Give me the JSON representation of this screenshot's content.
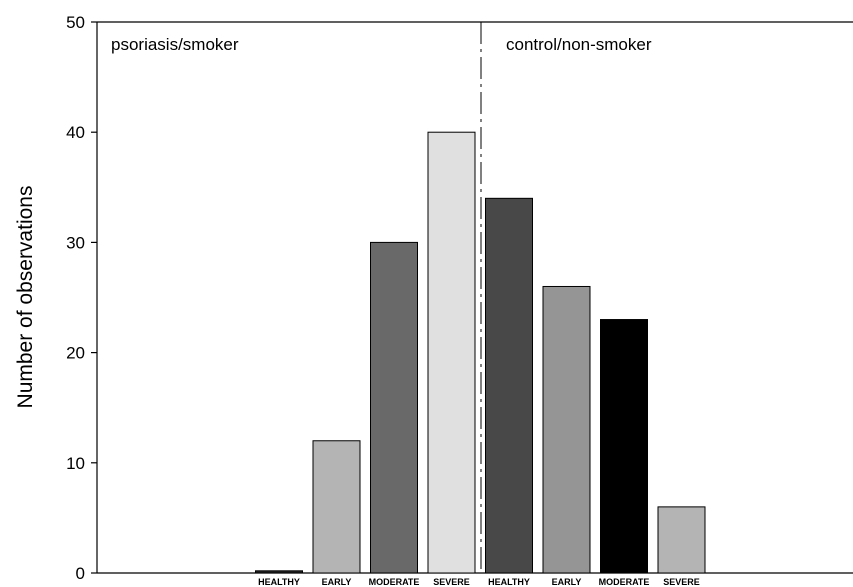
{
  "chart_data": {
    "type": "bar",
    "title": "",
    "xlabel": "",
    "ylabel": "Number of observations",
    "ylim": [
      0,
      50
    ],
    "yticks": [
      0,
      10,
      20,
      30,
      40,
      50
    ],
    "grid": false,
    "legend": "none",
    "annotations": [
      "psoriasis/smoker",
      "control/non-smoker"
    ],
    "categories": [
      "HEALTHY",
      "EARLY",
      "MODERATE",
      "SEVERE",
      "HEALTHY",
      "EARLY",
      "MODERATE",
      "SEVERE"
    ],
    "values": [
      0.2,
      12,
      30,
      40,
      34,
      26,
      23,
      6
    ],
    "colors": [
      "#222222",
      "#b4b4b4",
      "#696969",
      "#e0e0e0",
      "#484848",
      "#959595",
      "#000000",
      "#b4b4b4"
    ]
  }
}
